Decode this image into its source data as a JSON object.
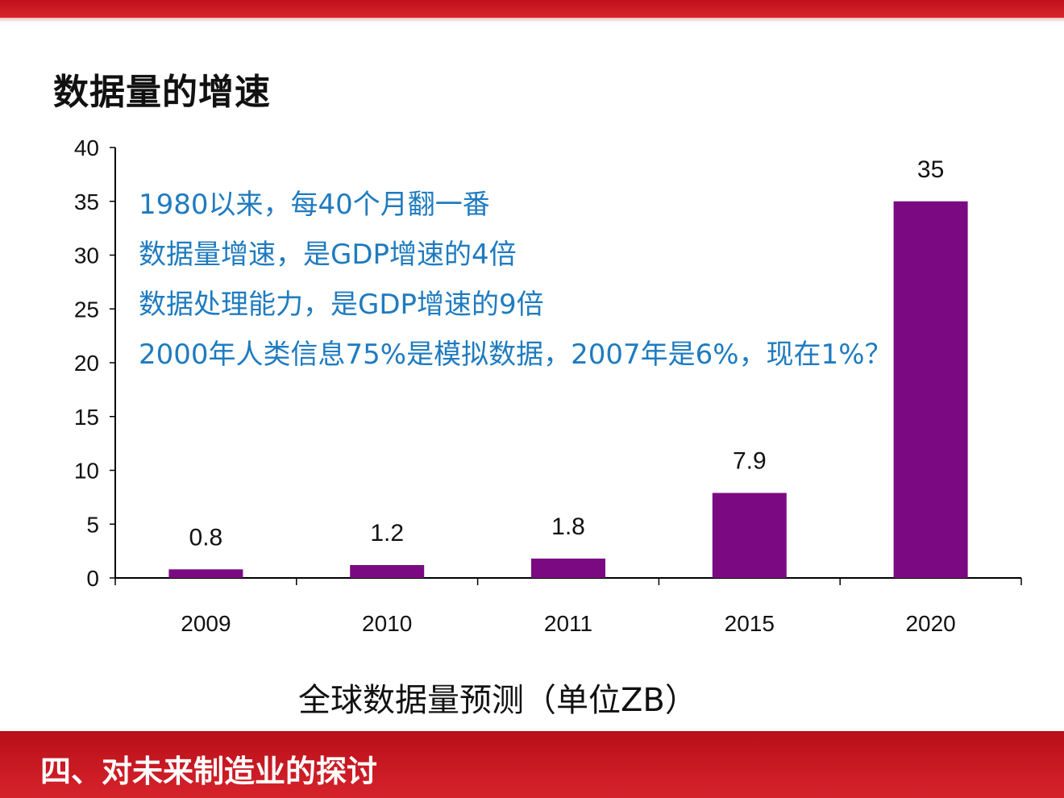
{
  "header": {
    "title": "数据量的增速"
  },
  "notes": [
    "1980以来，每40个月翻一番",
    "数据量增速，是GDP增速的4倍",
    "数据处理能力，是GDP增速的9倍",
    "2000年人类信息75%是模拟数据，2007年是6%，现在1%？"
  ],
  "caption": "全球数据量预测（单位ZB）",
  "footer": {
    "title": "四、对未来制造业的探讨"
  },
  "colors": {
    "bar": "#7b0a82",
    "accent_band": "#c8141e",
    "note_text": "#1f7bbf"
  },
  "chart_data": {
    "type": "bar",
    "categories": [
      "2009",
      "2010",
      "2011",
      "2015",
      "2020"
    ],
    "values": [
      0.8,
      1.2,
      1.8,
      7.9,
      35
    ],
    "data_labels": [
      "0.8",
      "1.2",
      "1.8",
      "7.9",
      "35"
    ],
    "yticks": [
      "0",
      "5",
      "10",
      "15",
      "20",
      "25",
      "30",
      "35",
      "40"
    ],
    "ylim": [
      0,
      40
    ],
    "title": "全球数据量预测（单位ZB）",
    "xlabel": "",
    "ylabel": "",
    "grid": false,
    "legend": "none"
  }
}
